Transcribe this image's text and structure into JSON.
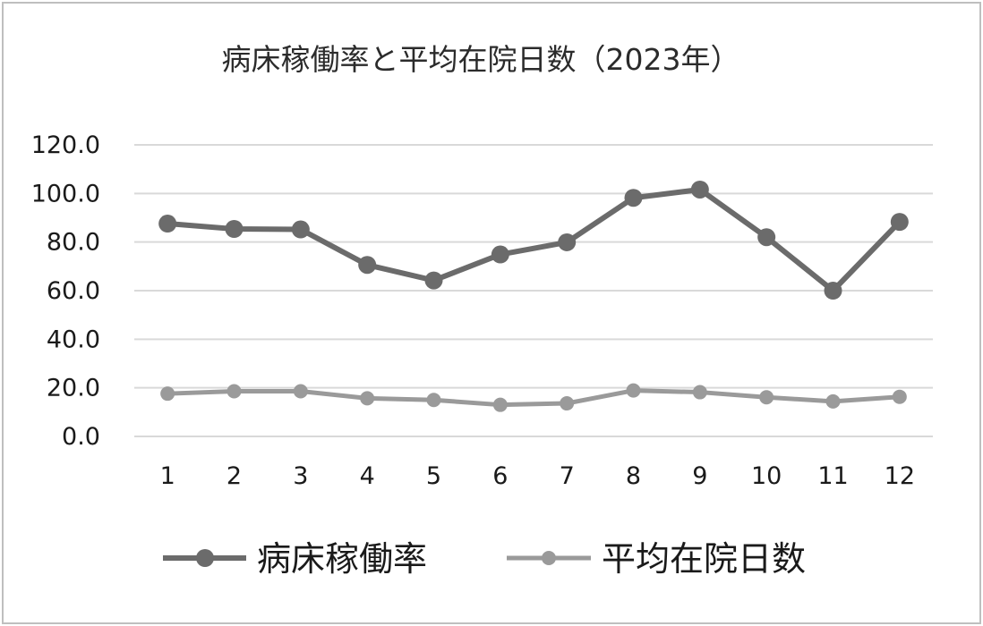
{
  "chart_data": {
    "type": "line",
    "title": "病床稼働率と平均在院日数（2023年）",
    "xlabel": "",
    "ylabel": "",
    "categories": [
      "1",
      "2",
      "3",
      "4",
      "5",
      "6",
      "7",
      "8",
      "9",
      "10",
      "11",
      "12"
    ],
    "ylim": [
      0,
      120
    ],
    "yticks": [
      "0.0",
      "20.0",
      "40.0",
      "60.0",
      "80.0",
      "100.0",
      "120.0"
    ],
    "grid": true,
    "legend_position": "bottom",
    "series": [
      {
        "name": "病床稼働率",
        "color": "#6b6b6b",
        "values": [
          87.6,
          85.4,
          85.2,
          70.6,
          64.2,
          74.9,
          79.9,
          98.2,
          101.6,
          82.0,
          60.0,
          88.3
        ]
      },
      {
        "name": "平均在院日数",
        "color": "#9a9a9a",
        "values": [
          17.6,
          18.6,
          18.6,
          15.7,
          15.0,
          13.0,
          13.6,
          18.9,
          18.2,
          16.1,
          14.4,
          16.3
        ]
      }
    ]
  }
}
